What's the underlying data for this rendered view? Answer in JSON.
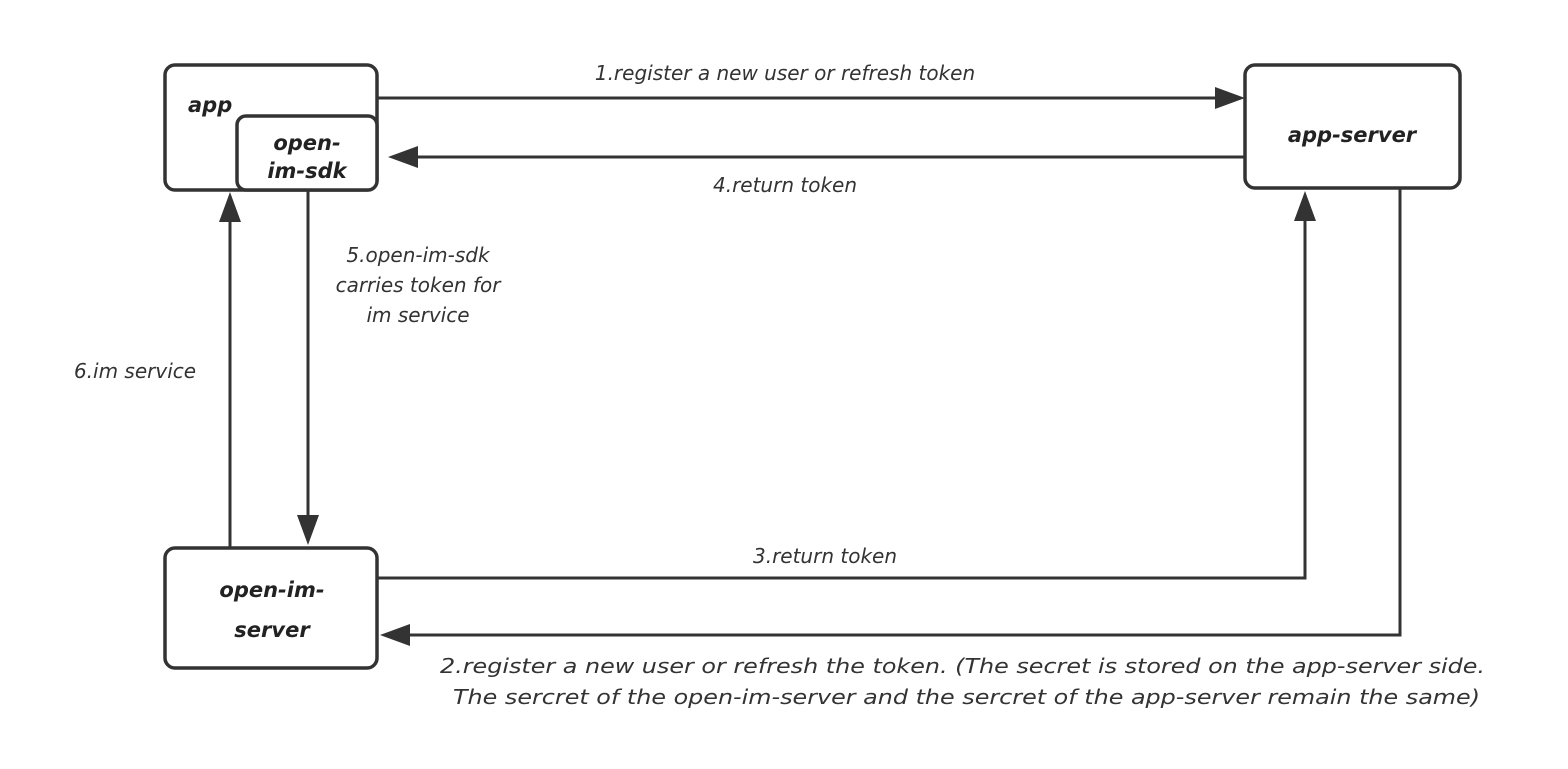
{
  "nodes": {
    "app": "app",
    "sdk": [
      "open-",
      "im-sdk"
    ],
    "app_server": "app-server",
    "im_server": [
      "open-im-",
      "server"
    ]
  },
  "edges": {
    "e1": "1.register a new user or refresh token",
    "e2": [
      "2.register a new user or refresh the token. (The secret is stored on the app-server side.",
      "The sercret of the open-im-server and the sercret of the app-server remain the same)"
    ],
    "e3": "3.return token",
    "e4": "4.return token",
    "e5": [
      "5.open-im-sdk",
      "carries token for",
      "im service"
    ],
    "e6": "6.im service"
  },
  "colors": {
    "stroke": "#333333"
  }
}
